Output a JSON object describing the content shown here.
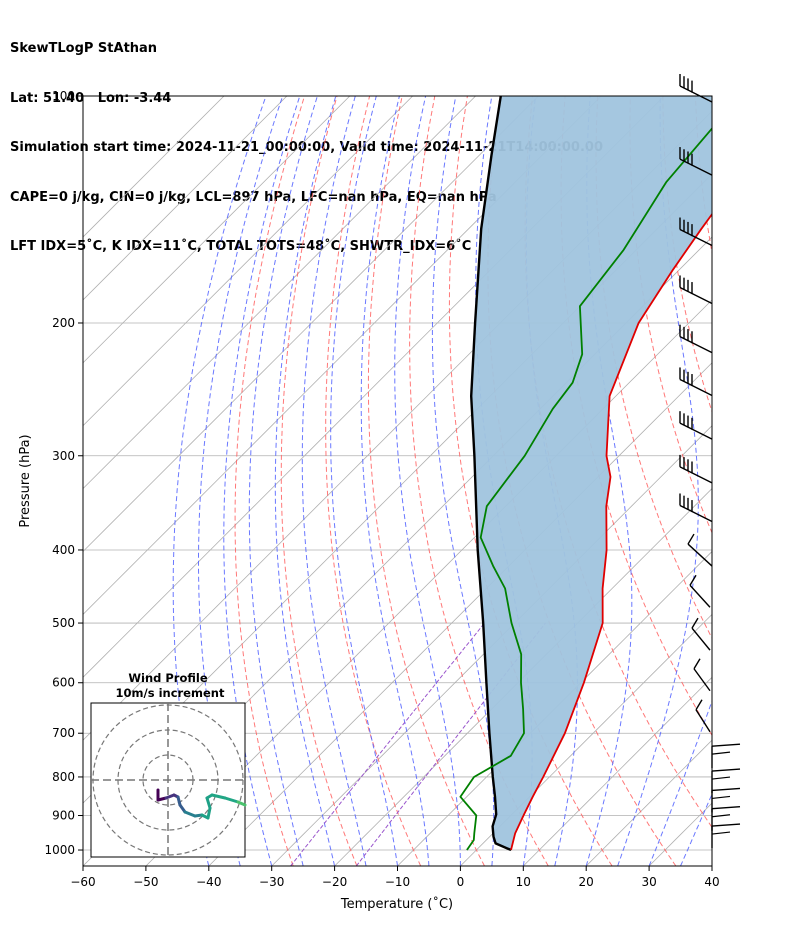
{
  "header": {
    "line1": "SkewTLogP StAthan",
    "line2": "Lat: 51.40   Lon: -3.44",
    "line3": "Simulation start time: 2024-11-21_00:00:00, Valid time: 2024-11-21T14:00:00.00",
    "line4": "CAPE=0 j/kg, CIN=0 j/kg, LCL=897 hPa, LFC=nan hPa, EQ=nan hPa",
    "line5": "LFT IDX=5˚C, K IDX=11˚C, TOTAL TOTS=48˚C, SHWTR_IDX=6˚C"
  },
  "chart_data": {
    "type": "line",
    "skew_t": true,
    "xlabel": "Temperature (˚C)",
    "ylabel": "Pressure (hPa)",
    "xlim": [
      -60,
      40
    ],
    "ylim": [
      1050,
      100
    ],
    "y_scale": "log",
    "x_ticks": [
      -60,
      -50,
      -40,
      -30,
      -20,
      -10,
      0,
      10,
      20,
      30,
      40
    ],
    "y_ticks": [
      100,
      200,
      300,
      400,
      500,
      600,
      700,
      800,
      900,
      1000
    ],
    "grid": true,
    "colors": {
      "temperature": "#e00000",
      "dewpoint": "#008000",
      "parcel": "#000000",
      "cape_fill": "#a0c4de",
      "dry_adiabats": "#ff6060",
      "moist_adiabats": "#5060ff",
      "mixing_ratio": "#9955cc",
      "isotherms": "#b0b0b0"
    },
    "series": [
      {
        "key": "temperature",
        "points": [
          [
            1000,
            5.5
          ],
          [
            950,
            3.5
          ],
          [
            900,
            2.0
          ],
          [
            850,
            0.5
          ],
          [
            800,
            -1.0
          ],
          [
            700,
            -4.5
          ],
          [
            600,
            -9.5
          ],
          [
            500,
            -16.0
          ],
          [
            450,
            -21.5
          ],
          [
            400,
            -27.0
          ],
          [
            350,
            -34.0
          ],
          [
            320,
            -38.0
          ],
          [
            300,
            -42.0
          ],
          [
            250,
            -51.0
          ],
          [
            200,
            -58.0
          ],
          [
            170,
            -61.0
          ],
          [
            150,
            -63.0
          ],
          [
            130,
            -65.0
          ],
          [
            110,
            -66.0
          ],
          [
            100,
            -66.0
          ]
        ]
      },
      {
        "key": "dewpoint",
        "points": [
          [
            1000,
            -1.5
          ],
          [
            970,
            -2.0
          ],
          [
            950,
            -3.0
          ],
          [
            900,
            -5.5
          ],
          [
            850,
            -11.0
          ],
          [
            800,
            -12.0
          ],
          [
            750,
            -9.5
          ],
          [
            700,
            -11.0
          ],
          [
            650,
            -15.0
          ],
          [
            600,
            -19.5
          ],
          [
            550,
            -24.0
          ],
          [
            500,
            -30.5
          ],
          [
            450,
            -37.0
          ],
          [
            420,
            -42.5
          ],
          [
            385,
            -49.0
          ],
          [
            350,
            -53.0
          ],
          [
            300,
            -55.0
          ],
          [
            260,
            -58.0
          ],
          [
            240,
            -59.0
          ],
          [
            220,
            -62.0
          ],
          [
            190,
            -70.0
          ],
          [
            160,
            -72.0
          ],
          [
            130,
            -76.0
          ],
          [
            100,
            -78.0
          ]
        ]
      },
      {
        "key": "parcel",
        "points": [
          [
            1000,
            5.5
          ],
          [
            980,
            2.0
          ],
          [
            960,
            0.6
          ],
          [
            930,
            -1.2
          ],
          [
            897,
            -2.5
          ],
          [
            850,
            -5.5
          ],
          [
            800,
            -9.0
          ],
          [
            700,
            -16.5
          ],
          [
            600,
            -25.0
          ],
          [
            500,
            -35.0
          ],
          [
            400,
            -47.5
          ],
          [
            300,
            -63.0
          ],
          [
            250,
            -73.0
          ],
          [
            200,
            -84.0
          ],
          [
            150,
            -98.0
          ],
          [
            120,
            -108.0
          ],
          [
            100,
            -116.0
          ]
        ]
      }
    ],
    "wind_barbs_pressures": [
      100,
      125,
      155,
      185,
      215,
      245,
      280,
      320,
      360,
      410,
      465,
      530,
      600,
      680,
      760,
      820,
      870,
      920,
      970
    ],
    "inset": {
      "title": "Wind Profile",
      "subtitle": "10m/s increment"
    }
  }
}
